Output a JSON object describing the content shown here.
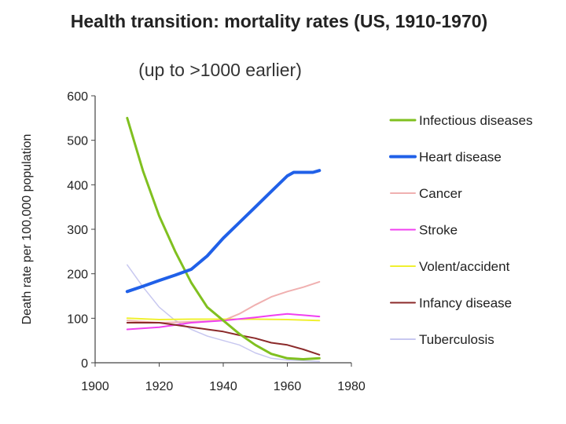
{
  "chart_data": {
    "type": "line",
    "title": "Health transition: mortality rates (US, 1910-1970)",
    "subtitle": "(up to >1000 earlier)",
    "xlabel": "",
    "ylabel": "Death rate per 100,000 population",
    "xlim": [
      1900,
      1980
    ],
    "ylim": [
      0,
      600
    ],
    "xticks": [
      1900,
      1920,
      1940,
      1960,
      1980
    ],
    "yticks": [
      0,
      100,
      200,
      300,
      400,
      500,
      600
    ],
    "grid": false,
    "legend_position": "right",
    "series": [
      {
        "name": "Infectious diseases",
        "color": "#80c020",
        "width": 3,
        "x": [
          1910,
          1915,
          1920,
          1925,
          1930,
          1935,
          1940,
          1945,
          1950,
          1955,
          1960,
          1965,
          1970
        ],
        "y": [
          550,
          430,
          330,
          250,
          180,
          125,
          95,
          65,
          40,
          20,
          10,
          8,
          10
        ]
      },
      {
        "name": "Heart disease",
        "color": "#2060e8",
        "width": 4,
        "x": [
          1910,
          1915,
          1920,
          1925,
          1930,
          1935,
          1940,
          1945,
          1950,
          1955,
          1960,
          1962,
          1965,
          1968,
          1970
        ],
        "y": [
          160,
          172,
          185,
          197,
          210,
          240,
          280,
          315,
          350,
          385,
          420,
          428,
          428,
          428,
          432
        ]
      },
      {
        "name": "Cancer",
        "color": "#f0b0b0",
        "width": 2,
        "x": [
          1910,
          1920,
          1930,
          1940,
          1945,
          1950,
          1955,
          1960,
          1965,
          1970
        ],
        "y": [
          95,
          90,
          92,
          95,
          110,
          130,
          148,
          160,
          170,
          182
        ]
      },
      {
        "name": "Stroke",
        "color": "#f040f0",
        "width": 2,
        "x": [
          1910,
          1920,
          1930,
          1940,
          1950,
          1955,
          1960,
          1965,
          1970
        ],
        "y": [
          75,
          80,
          90,
          95,
          102,
          106,
          110,
          107,
          104
        ]
      },
      {
        "name": "Volent/accident",
        "color": "#f0f030",
        "width": 2,
        "x": [
          1910,
          1920,
          1930,
          1940,
          1950,
          1960,
          1970
        ],
        "y": [
          100,
          97,
          98,
          98,
          98,
          97,
          95
        ]
      },
      {
        "name": "Infancy disease",
        "color": "#8b2a2a",
        "width": 2,
        "x": [
          1910,
          1920,
          1925,
          1930,
          1935,
          1940,
          1945,
          1950,
          1955,
          1960,
          1965,
          1970
        ],
        "y": [
          90,
          90,
          85,
          80,
          75,
          70,
          62,
          55,
          45,
          40,
          30,
          18
        ]
      },
      {
        "name": "Tuberculosis",
        "color": "#c8c8f0",
        "width": 1.5,
        "x": [
          1910,
          1915,
          1920,
          1925,
          1930,
          1935,
          1940,
          1945,
          1950,
          1955,
          1960,
          1970
        ],
        "y": [
          220,
          170,
          125,
          95,
          75,
          60,
          50,
          40,
          22,
          10,
          6,
          3
        ]
      }
    ]
  }
}
